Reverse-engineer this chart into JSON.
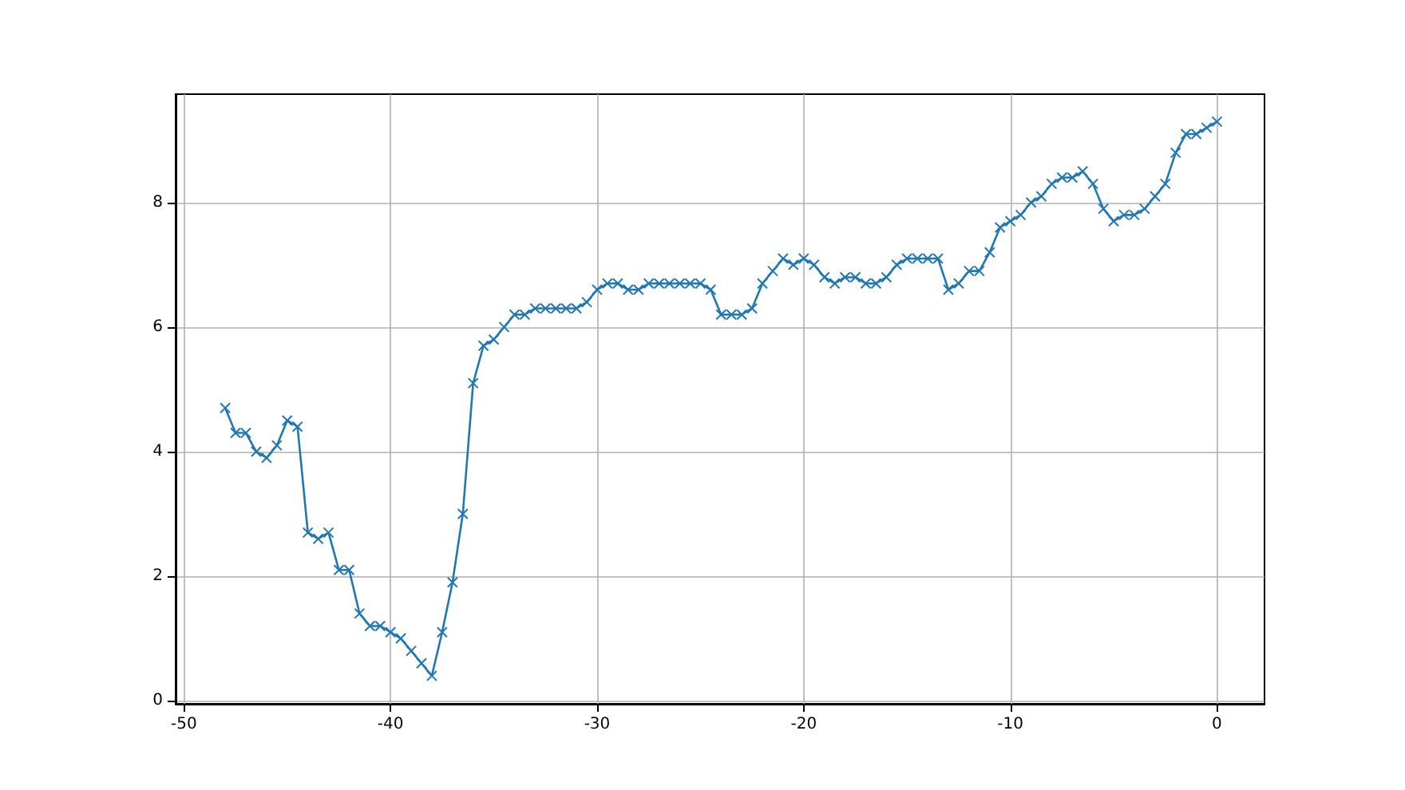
{
  "chart_data": {
    "type": "line",
    "color": "#1f77b4",
    "marker": "cross",
    "grid": true,
    "x": [
      -48,
      -47.5,
      -47,
      -46.5,
      -46,
      -45.5,
      -45,
      -44.5,
      -44,
      -43.5,
      -43,
      -42.5,
      -42,
      -41.5,
      -41,
      -40.5,
      -40,
      -39.5,
      -39,
      -38.5,
      -38,
      -37.5,
      -37,
      -36.5,
      -36,
      -35.5,
      -35,
      -34.5,
      -34,
      -33.5,
      -33,
      -32.5,
      -32,
      -31.5,
      -31,
      -30.5,
      -30,
      -29.5,
      -29,
      -28.5,
      -28,
      -27.5,
      -27,
      -26.5,
      -26,
      -25.5,
      -25,
      -24.5,
      -24,
      -23.5,
      -23,
      -22.5,
      -22,
      -21.5,
      -21,
      -20.5,
      -20,
      -19.5,
      -19,
      -18.5,
      -18,
      -17.5,
      -17,
      -16.5,
      -16,
      -15.5,
      -15,
      -14.5,
      -14,
      -13.5,
      -13,
      -12.5,
      -12,
      -11.5,
      -11,
      -10.5,
      -10,
      -9.5,
      -9,
      -8.5,
      -8,
      -7.5,
      -7,
      -6.5,
      -6,
      -5.5,
      -5,
      -4.5,
      -4,
      -3.5,
      -3,
      -2.5,
      -2,
      -1.5,
      -1,
      -0.5,
      0
    ],
    "values": [
      4.7,
      4.3,
      4.3,
      4.0,
      3.9,
      4.1,
      4.5,
      4.4,
      2.7,
      2.6,
      2.7,
      2.1,
      2.1,
      1.4,
      1.2,
      1.2,
      1.1,
      1.0,
      0.8,
      0.6,
      0.4,
      1.1,
      1.9,
      3.0,
      5.1,
      5.7,
      5.8,
      6.0,
      6.2,
      6.2,
      6.3,
      6.3,
      6.3,
      6.3,
      6.3,
      6.4,
      6.6,
      6.7,
      6.7,
      6.6,
      6.6,
      6.7,
      6.7,
      6.7,
      6.7,
      6.7,
      6.7,
      6.6,
      6.2,
      6.2,
      6.2,
      6.3,
      6.7,
      6.9,
      7.1,
      7.0,
      7.1,
      7.0,
      6.8,
      6.7,
      6.8,
      6.8,
      6.7,
      6.7,
      6.8,
      7.0,
      7.1,
      7.1,
      7.1,
      7.1,
      6.6,
      6.7,
      6.9,
      6.9,
      7.2,
      7.6,
      7.7,
      7.8,
      8.0,
      8.1,
      8.3,
      8.4,
      8.4,
      8.5,
      8.3,
      7.9,
      7.7,
      7.8,
      7.8,
      7.9,
      8.1,
      8.3,
      8.8,
      9.1,
      9.1,
      9.2,
      9.3
    ],
    "xlim": [
      -50.4,
      2.3
    ],
    "xticks": [
      -50,
      -40,
      -30,
      -20,
      -10,
      0
    ],
    "ylim": [
      -0.05,
      9.74
    ],
    "yticks": [
      0,
      2,
      4,
      6,
      8
    ]
  }
}
